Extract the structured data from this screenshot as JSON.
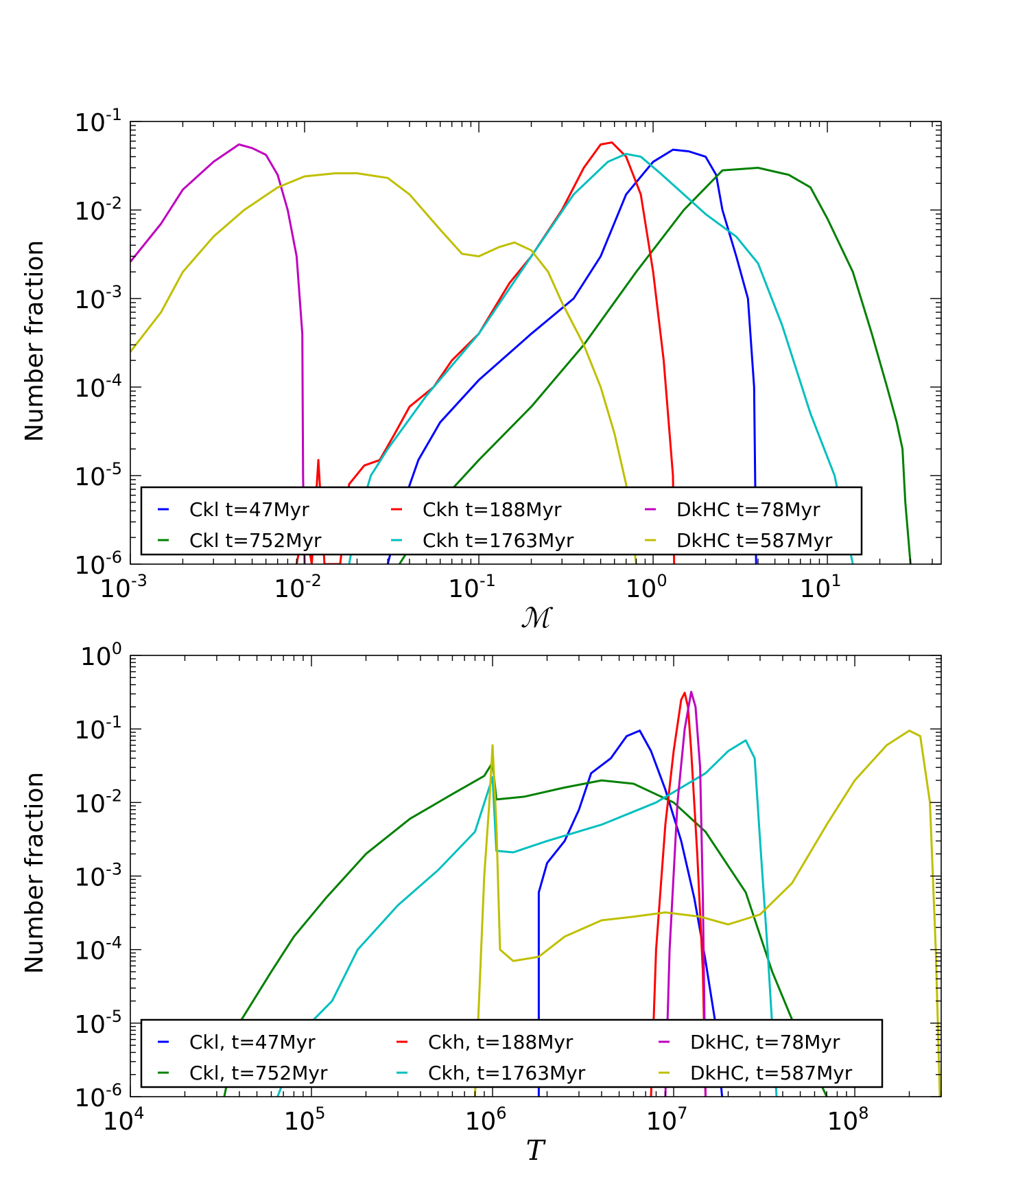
{
  "chart_data": [
    {
      "type": "line",
      "xlabel": "ℳ",
      "ylabel": "Number fraction",
      "xscale": "log",
      "yscale": "log",
      "xlim": [
        0.001,
        45
      ],
      "ylim": [
        1e-06,
        0.1
      ],
      "grid": false,
      "legend_placement": "lower-center",
      "x_ticks": [
        {
          "base": "10",
          "exp": "-3"
        },
        {
          "base": "10",
          "exp": "-2"
        },
        {
          "base": "10",
          "exp": "-1"
        },
        {
          "base": "10",
          "exp": "0"
        },
        {
          "base": "10",
          "exp": "1"
        }
      ],
      "y_ticks": [
        {
          "base": "10",
          "exp": "-6"
        },
        {
          "base": "10",
          "exp": "-5"
        },
        {
          "base": "10",
          "exp": "-4"
        },
        {
          "base": "10",
          "exp": "-3"
        },
        {
          "base": "10",
          "exp": "-2"
        },
        {
          "base": "10",
          "exp": "-1"
        }
      ],
      "series": [
        {
          "name": "Ckl t=47Myr",
          "color": "#0000ff",
          "points": [
            [
              0.03,
              1e-06
            ],
            [
              0.037,
              5e-06
            ],
            [
              0.045,
              1.5e-05
            ],
            [
              0.06,
              4e-05
            ],
            [
              0.1,
              0.00012
            ],
            [
              0.2,
              0.0004
            ],
            [
              0.35,
              0.001
            ],
            [
              0.5,
              0.003
            ],
            [
              0.7,
              0.015
            ],
            [
              1.0,
              0.035
            ],
            [
              1.3,
              0.048
            ],
            [
              1.6,
              0.046
            ],
            [
              2.0,
              0.04
            ],
            [
              2.3,
              0.025
            ],
            [
              2.5,
              0.01
            ],
            [
              3.0,
              0.003
            ],
            [
              3.5,
              0.001
            ],
            [
              3.8,
              0.0001
            ],
            [
              3.9,
              1e-06
            ]
          ]
        },
        {
          "name": "Ckl t=752Myr",
          "color": "#008000",
          "points": [
            [
              0.035,
              1e-06
            ],
            [
              0.05,
              3e-06
            ],
            [
              0.07,
              7e-06
            ],
            [
              0.1,
              1.5e-05
            ],
            [
              0.2,
              6e-05
            ],
            [
              0.4,
              0.0003
            ],
            [
              0.8,
              0.002
            ],
            [
              1.5,
              0.01
            ],
            [
              2.5,
              0.028
            ],
            [
              4.0,
              0.03
            ],
            [
              6.0,
              0.025
            ],
            [
              8.0,
              0.018
            ],
            [
              10.0,
              0.008
            ],
            [
              14.0,
              0.002
            ],
            [
              18.0,
              0.0004
            ],
            [
              22.0,
              0.0001
            ],
            [
              25.0,
              4e-05
            ],
            [
              27.0,
              2e-05
            ],
            [
              28.0,
              5e-06
            ],
            [
              30.0,
              1e-06
            ]
          ]
        },
        {
          "name": "Ckh t=188Myr",
          "color": "#ff0000",
          "points": [
            [
              0.009,
              1e-06
            ],
            [
              0.01,
              3e-06
            ],
            [
              0.011,
              1e-06
            ],
            [
              0.012,
              1.5e-05
            ],
            [
              0.013,
              1e-06
            ],
            [
              0.016,
              1e-06
            ],
            [
              0.018,
              8e-06
            ],
            [
              0.022,
              1.3e-05
            ],
            [
              0.027,
              1.5e-05
            ],
            [
              0.033,
              3e-05
            ],
            [
              0.04,
              6e-05
            ],
            [
              0.055,
              0.0001
            ],
            [
              0.07,
              0.0002
            ],
            [
              0.1,
              0.0004
            ],
            [
              0.15,
              0.0015
            ],
            [
              0.2,
              0.003
            ],
            [
              0.3,
              0.01
            ],
            [
              0.4,
              0.03
            ],
            [
              0.5,
              0.055
            ],
            [
              0.58,
              0.058
            ],
            [
              0.7,
              0.04
            ],
            [
              0.85,
              0.015
            ],
            [
              1.0,
              0.002
            ],
            [
              1.15,
              0.0002
            ],
            [
              1.3,
              1e-05
            ],
            [
              1.32,
              1e-06
            ]
          ]
        },
        {
          "name": "Ckh t=1763Myr",
          "color": "#00bfbf",
          "points": [
            [
              0.018,
              1e-06
            ],
            [
              0.02,
              3e-06
            ],
            [
              0.024,
              1e-05
            ],
            [
              0.03,
              2e-05
            ],
            [
              0.05,
              8e-05
            ],
            [
              0.1,
              0.0004
            ],
            [
              0.2,
              0.003
            ],
            [
              0.35,
              0.015
            ],
            [
              0.55,
              0.035
            ],
            [
              0.7,
              0.043
            ],
            [
              0.85,
              0.04
            ],
            [
              1.1,
              0.026
            ],
            [
              1.5,
              0.015
            ],
            [
              2.0,
              0.009
            ],
            [
              3.0,
              0.005
            ],
            [
              4.0,
              0.0025
            ],
            [
              5.5,
              0.0005
            ],
            [
              8.0,
              5e-05
            ],
            [
              11.0,
              1e-05
            ],
            [
              14.0,
              1e-06
            ]
          ]
        },
        {
          "name": "DkHC t=78Myr",
          "color": "#bf00bf",
          "points": [
            [
              0.001,
              0.0026
            ],
            [
              0.0015,
              0.007
            ],
            [
              0.002,
              0.017
            ],
            [
              0.003,
              0.035
            ],
            [
              0.0042,
              0.055
            ],
            [
              0.005,
              0.05
            ],
            [
              0.006,
              0.042
            ],
            [
              0.007,
              0.025
            ],
            [
              0.008,
              0.01
            ],
            [
              0.009,
              0.003
            ],
            [
              0.0097,
              0.0004
            ],
            [
              0.0098,
              1e-05
            ],
            [
              0.01,
              1e-06
            ]
          ]
        },
        {
          "name": "DkHC t=587Myr",
          "color": "#bfbf00",
          "points": [
            [
              0.001,
              0.00025
            ],
            [
              0.0015,
              0.0007
            ],
            [
              0.002,
              0.002
            ],
            [
              0.003,
              0.005
            ],
            [
              0.0045,
              0.01
            ],
            [
              0.007,
              0.018
            ],
            [
              0.01,
              0.024
            ],
            [
              0.015,
              0.026
            ],
            [
              0.02,
              0.026
            ],
            [
              0.03,
              0.023
            ],
            [
              0.04,
              0.015
            ],
            [
              0.06,
              0.006
            ],
            [
              0.08,
              0.0032
            ],
            [
              0.1,
              0.003
            ],
            [
              0.13,
              0.0038
            ],
            [
              0.16,
              0.0043
            ],
            [
              0.2,
              0.0035
            ],
            [
              0.25,
              0.002
            ],
            [
              0.3,
              0.0009
            ],
            [
              0.4,
              0.0003
            ],
            [
              0.5,
              0.0001
            ],
            [
              0.6,
              3e-05
            ],
            [
              0.7,
              8e-06
            ],
            [
              0.8,
              1e-06
            ]
          ]
        }
      ]
    },
    {
      "type": "line",
      "xlabel": "T",
      "ylabel": "Number fraction",
      "xscale": "log",
      "yscale": "log",
      "xlim": [
        10000,
        300000000
      ],
      "ylim": [
        1e-06,
        1
      ],
      "grid": false,
      "legend_placement": "lower-center",
      "x_ticks": [
        {
          "base": "10",
          "exp": "4"
        },
        {
          "base": "10",
          "exp": "5"
        },
        {
          "base": "10",
          "exp": "6"
        },
        {
          "base": "10",
          "exp": "7"
        },
        {
          "base": "10",
          "exp": "8"
        }
      ],
      "y_ticks": [
        {
          "base": "10",
          "exp": "-6"
        },
        {
          "base": "10",
          "exp": "-5"
        },
        {
          "base": "10",
          "exp": "-4"
        },
        {
          "base": "10",
          "exp": "-3"
        },
        {
          "base": "10",
          "exp": "-2"
        },
        {
          "base": "10",
          "exp": "-1"
        },
        {
          "base": "10",
          "exp": "0"
        }
      ],
      "series": [
        {
          "name": "Ckl, t=47Myr",
          "color": "#0000ff",
          "points": [
            [
              1800000,
              1e-06
            ],
            [
              1800000,
              0.0006
            ],
            [
              2000000,
              0.0015
            ],
            [
              2500000,
              0.003
            ],
            [
              3000000,
              0.008
            ],
            [
              3500000,
              0.025
            ],
            [
              4500000,
              0.04
            ],
            [
              5500000,
              0.08
            ],
            [
              6500000,
              0.095
            ],
            [
              7500000,
              0.05
            ],
            [
              9000000,
              0.015
            ],
            [
              11000000,
              0.003
            ],
            [
              13000000,
              0.0005
            ],
            [
              15000000,
              7e-05
            ],
            [
              17000000,
              1e-05
            ],
            [
              18500000,
              1e-06
            ]
          ]
        },
        {
          "name": "Ckl, t=752Myr",
          "color": "#008000",
          "points": [
            [
              33000,
              1e-06
            ],
            [
              40000,
              1e-05
            ],
            [
              60000,
              5e-05
            ],
            [
              80000,
              0.00015
            ],
            [
              120000,
              0.0005
            ],
            [
              200000,
              0.002
            ],
            [
              350000,
              0.006
            ],
            [
              600000,
              0.013
            ],
            [
              900000,
              0.023
            ],
            [
              1000000,
              0.035
            ],
            [
              1050000,
              0.011
            ],
            [
              1500000,
              0.012
            ],
            [
              2500000,
              0.016
            ],
            [
              4000000,
              0.02
            ],
            [
              6000000,
              0.018
            ],
            [
              10000000,
              0.01
            ],
            [
              15000000,
              0.004
            ],
            [
              25000000,
              0.0006
            ],
            [
              35000000,
              5e-05
            ],
            [
              50000000,
              6e-06
            ],
            [
              70000000,
              1e-06
            ]
          ]
        },
        {
          "name": "Ckh, t=188Myr",
          "color": "#ff0000",
          "points": [
            [
              7500000,
              1e-06
            ],
            [
              8000000,
              0.0001
            ],
            [
              9000000,
              0.005
            ],
            [
              10000000,
              0.05
            ],
            [
              11000000,
              0.25
            ],
            [
              11500000,
              0.31
            ],
            [
              12000000,
              0.2
            ],
            [
              12500000,
              0.05
            ],
            [
              13500000,
              0.002
            ],
            [
              14500000,
              5e-05
            ],
            [
              15000000,
              1e-06
            ]
          ]
        },
        {
          "name": "Ckh, t=1763Myr",
          "color": "#00bfbf",
          "points": [
            [
              65000,
              1e-06
            ],
            [
              90000,
              8e-06
            ],
            [
              130000,
              2e-05
            ],
            [
              180000,
              0.0001
            ],
            [
              300000,
              0.0004
            ],
            [
              500000,
              0.0012
            ],
            [
              800000,
              0.004
            ],
            [
              1000000,
              0.022
            ],
            [
              1050000,
              0.0022
            ],
            [
              1300000,
              0.0021
            ],
            [
              2000000,
              0.003
            ],
            [
              4000000,
              0.005
            ],
            [
              8000000,
              0.01
            ],
            [
              15000000,
              0.025
            ],
            [
              20000000,
              0.05
            ],
            [
              25000000,
              0.07
            ],
            [
              28000000,
              0.04
            ],
            [
              30000000,
              0.003
            ],
            [
              33000000,
              0.0001
            ],
            [
              37000000,
              1e-06
            ]
          ]
        },
        {
          "name": "DkHC, t=78Myr",
          "color": "#bf00bf",
          "points": [
            [
              9000000,
              1e-06
            ],
            [
              9500000,
              0.0001
            ],
            [
              10500000,
              0.01
            ],
            [
              11500000,
              0.1
            ],
            [
              12500000,
              0.32
            ],
            [
              13200000,
              0.2
            ],
            [
              14000000,
              0.03
            ],
            [
              14500000,
              0.0005
            ],
            [
              15000000,
              1e-06
            ]
          ]
        },
        {
          "name": "DkHC, t=587Myr",
          "color": "#bfbf00",
          "points": [
            [
              800000,
              1e-06
            ],
            [
              900000,
              0.001
            ],
            [
              960000,
              0.01
            ],
            [
              1000000,
              0.06
            ],
            [
              1050000,
              0.005
            ],
            [
              1100000,
              0.0001
            ],
            [
              1300000,
              7e-05
            ],
            [
              1800000,
              8e-05
            ],
            [
              2500000,
              0.00015
            ],
            [
              4000000,
              0.00025
            ],
            [
              6000000,
              0.00028
            ],
            [
              9000000,
              0.00032
            ],
            [
              14000000,
              0.00028
            ],
            [
              20000000,
              0.00022
            ],
            [
              30000000,
              0.0003
            ],
            [
              45000000,
              0.0008
            ],
            [
              70000000,
              0.005
            ],
            [
              100000000,
              0.02
            ],
            [
              150000000,
              0.06
            ],
            [
              200000000,
              0.095
            ],
            [
              230000000,
              0.08
            ],
            [
              260000000,
              0.01
            ],
            [
              280000000,
              0.0001
            ],
            [
              295000000,
              1e-06
            ]
          ]
        }
      ]
    }
  ]
}
